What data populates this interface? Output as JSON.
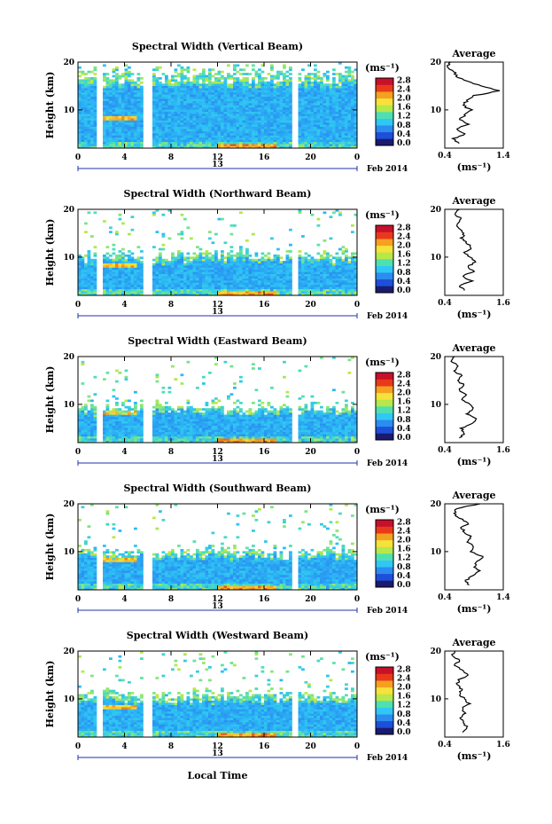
{
  "figure": {
    "xlabel": "Local Time",
    "date_label": "Feb 2014",
    "day_marker": "13",
    "ylabel": "Height (km)",
    "colorbar_unit": "(ms⁻¹)",
    "avg_unit": "(ms⁻¹)",
    "avg_title": "Average",
    "colorbar_ticks": [
      "0.0",
      "0.4",
      "0.8",
      "1.2",
      "1.6",
      "2.0",
      "2.4",
      "2.8"
    ],
    "colorbar_colors": [
      "#1a1a6e",
      "#1d4fd8",
      "#2c8cf0",
      "#2fc8f5",
      "#4fe0b0",
      "#b6e84a",
      "#f5e23a",
      "#f5a020",
      "#e83a1a",
      "#c8102a"
    ],
    "no_data_gaps_hours": [
      [
        1.5,
        2.0
      ],
      [
        5.5,
        6.5
      ],
      [
        18.5,
        19.0
      ]
    ]
  },
  "chart_data": [
    {
      "type": "heatmap",
      "title": "Spectral Width (Vertical Beam)",
      "xlabel": "Local Time",
      "ylabel": "Height (km)",
      "x_ticks": [
        "0",
        "4",
        "8",
        "12",
        "16",
        "20",
        "0"
      ],
      "xlim": [
        0,
        24
      ],
      "y_ticks": [
        "10",
        "20"
      ],
      "ylim": [
        2,
        20
      ],
      "colorbar": {
        "unit": "(ms⁻¹)",
        "range": [
          0.0,
          2.8
        ]
      },
      "average_profile": {
        "title": "Average",
        "xlabel": "(ms⁻¹)",
        "x_ticks": [
          "0.4",
          "1.4"
        ],
        "xlim": [
          0.4,
          1.4
        ],
        "y_ticks": [
          "10",
          "20"
        ],
        "ylim": [
          2,
          20
        ],
        "heights": [
          3,
          4,
          5,
          6,
          7,
          8,
          9,
          10,
          11,
          12,
          13,
          14,
          15,
          16,
          17,
          18,
          19,
          20
        ],
        "values": [
          0.65,
          0.55,
          0.75,
          0.6,
          0.8,
          0.65,
          0.75,
          0.85,
          0.7,
          0.8,
          0.9,
          1.35,
          1.0,
          0.8,
          0.6,
          0.55,
          0.45,
          0.5
        ]
      }
    },
    {
      "type": "heatmap",
      "title": "Spectral Width (Northward Beam)",
      "xlabel": "Local Time",
      "ylabel": "Height (km)",
      "x_ticks": [
        "0",
        "4",
        "8",
        "12",
        "16",
        "20",
        "0"
      ],
      "xlim": [
        0,
        24
      ],
      "y_ticks": [
        "10",
        "20"
      ],
      "ylim": [
        2,
        20
      ],
      "colorbar": {
        "unit": "(ms⁻¹)",
        "range": [
          0.0,
          2.8
        ]
      },
      "average_profile": {
        "title": "Average",
        "xlabel": "(ms⁻¹)",
        "x_ticks": [
          "0.4",
          "1.6"
        ],
        "xlim": [
          0.4,
          1.6
        ],
        "y_ticks": [
          "10",
          "20"
        ],
        "ylim": [
          2,
          20
        ],
        "heights": [
          3,
          4,
          5,
          6,
          7,
          8,
          9,
          10,
          11,
          12,
          13,
          14,
          15,
          16,
          17,
          18,
          19,
          20
        ],
        "values": [
          0.8,
          0.7,
          0.95,
          0.75,
          1.0,
          0.85,
          1.05,
          0.9,
          0.8,
          0.95,
          0.85,
          0.75,
          0.8,
          0.7,
          0.65,
          0.75,
          0.6,
          0.7
        ]
      }
    },
    {
      "type": "heatmap",
      "title": "Spectral Width (Eastward Beam)",
      "xlabel": "Local Time",
      "ylabel": "Height (km)",
      "x_ticks": [
        "0",
        "4",
        "8",
        "12",
        "16",
        "20",
        "0"
      ],
      "xlim": [
        0,
        24
      ],
      "y_ticks": [
        "10",
        "20"
      ],
      "ylim": [
        2,
        20
      ],
      "colorbar": {
        "unit": "(ms⁻¹)",
        "range": [
          0.0,
          2.8
        ]
      },
      "average_profile": {
        "title": "Average",
        "xlabel": "(ms⁻¹)",
        "x_ticks": [
          "0.4",
          "1.6"
        ],
        "xlim": [
          0.4,
          1.6
        ],
        "y_ticks": [
          "10",
          "20"
        ],
        "ylim": [
          2,
          20
        ],
        "heights": [
          3,
          4,
          5,
          6,
          7,
          8,
          9,
          10,
          11,
          12,
          13,
          14,
          15,
          16,
          17,
          18,
          19,
          20
        ],
        "values": [
          0.7,
          0.8,
          0.75,
          0.95,
          1.05,
          0.85,
          1.0,
          0.9,
          0.75,
          0.85,
          0.7,
          0.8,
          0.65,
          0.75,
          0.6,
          0.7,
          0.55,
          0.6
        ]
      }
    },
    {
      "type": "heatmap",
      "title": "Spectral Width (Southward Beam)",
      "xlabel": "Local Time",
      "ylabel": "Height (km)",
      "x_ticks": [
        "0",
        "4",
        "8",
        "12",
        "16",
        "20",
        "0"
      ],
      "xlim": [
        0,
        24
      ],
      "y_ticks": [
        "10",
        "20"
      ],
      "ylim": [
        2,
        20
      ],
      "colorbar": {
        "unit": "(ms⁻¹)",
        "range": [
          0.0,
          2.8
        ]
      },
      "average_profile": {
        "title": "Average",
        "xlabel": "(ms⁻¹)",
        "x_ticks": [
          "0.4",
          "1.4"
        ],
        "xlim": [
          0.4,
          1.4
        ],
        "y_ticks": [
          "10",
          "20"
        ],
        "ylim": [
          2,
          20
        ],
        "heights": [
          3,
          4,
          5,
          6,
          7,
          8,
          9,
          10,
          11,
          12,
          13,
          14,
          15,
          16,
          17,
          18,
          19,
          20
        ],
        "values": [
          0.8,
          0.75,
          0.9,
          1.0,
          0.9,
          0.95,
          1.05,
          0.85,
          0.9,
          0.8,
          0.85,
          0.75,
          0.7,
          0.8,
          0.65,
          0.55,
          0.6,
          1.0
        ]
      }
    },
    {
      "type": "heatmap",
      "title": "Spectral Width (Westward Beam)",
      "xlabel": "Local Time",
      "ylabel": "Height (km)",
      "x_ticks": [
        "0",
        "4",
        "8",
        "12",
        "16",
        "20",
        "0"
      ],
      "xlim": [
        0,
        24
      ],
      "y_ticks": [
        "10",
        "20"
      ],
      "ylim": [
        2,
        20
      ],
      "colorbar": {
        "unit": "(ms⁻¹)",
        "range": [
          0.0,
          2.8
        ]
      },
      "average_profile": {
        "title": "Average",
        "xlabel": "(ms⁻¹)",
        "x_ticks": [
          "0.4",
          "1.6"
        ],
        "xlim": [
          0.4,
          1.6
        ],
        "y_ticks": [
          "10",
          "20"
        ],
        "ylim": [
          2,
          20
        ],
        "heights": [
          3,
          4,
          5,
          6,
          7,
          8,
          9,
          10,
          11,
          12,
          13,
          14,
          15,
          16,
          17,
          18,
          19,
          20
        ],
        "values": [
          0.75,
          0.85,
          0.8,
          0.7,
          0.8,
          0.75,
          0.9,
          0.8,
          0.7,
          0.75,
          0.65,
          0.7,
          0.9,
          0.75,
          0.6,
          0.7,
          0.55,
          0.6
        ]
      }
    }
  ]
}
